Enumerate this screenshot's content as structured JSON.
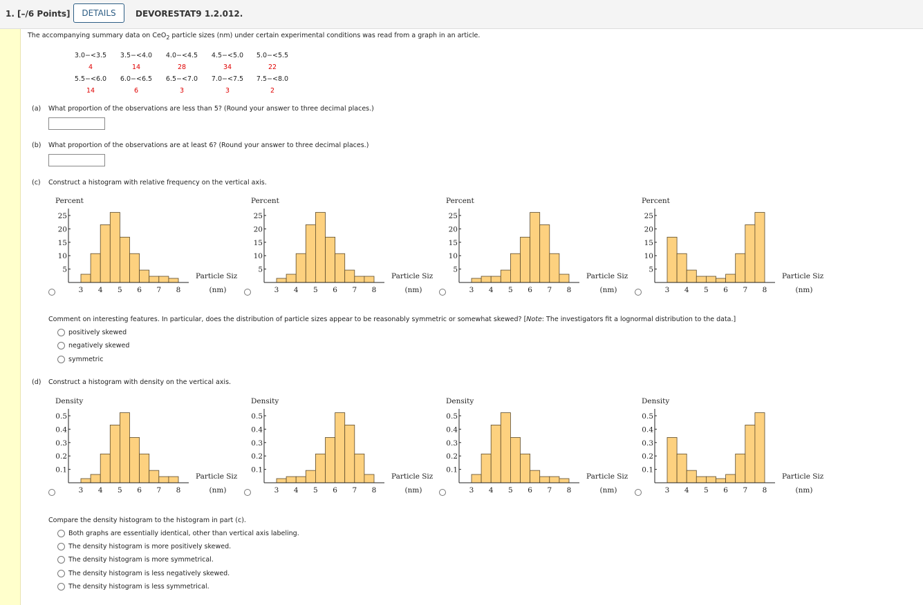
{
  "header": {
    "question_number": "1.",
    "points": "[–/6 Points]",
    "details_label": "DETAILS",
    "problem_id": "DEVORESTAT9 1.2.012."
  },
  "intro": {
    "before": "The accompanying summary data on CeO",
    "subscript": "2",
    "after": " particle sizes (nm) under certain experimental conditions was read from a graph in an article."
  },
  "table": {
    "rows": [
      {
        "intervals": [
          "3.0−<3.5",
          "3.5−<4.0",
          "4.0−<4.5",
          "4.5−<5.0",
          "5.0−<5.5"
        ],
        "counts": [
          "4",
          "14",
          "28",
          "34",
          "22"
        ]
      },
      {
        "intervals": [
          "5.5−<6.0",
          "6.0−<6.5",
          "6.5−<7.0",
          "7.0−<7.5",
          "7.5−<8.0"
        ],
        "counts": [
          "14",
          "6",
          "3",
          "3",
          "2"
        ]
      }
    ]
  },
  "part_a": {
    "label": "(a)",
    "question": "What proportion of the observations are less than 5? (Round your answer to three decimal places.)",
    "value": ""
  },
  "part_b": {
    "label": "(b)",
    "question": "What proportion of the observations are at least 6? (Round your answer to three decimal places.)",
    "value": ""
  },
  "part_c": {
    "label": "(c)",
    "question": "Construct a histogram with relative frequency on the vertical axis."
  },
  "comment": {
    "question_pre": "Comment on interesting features. In particular, does the distribution of particle sizes appear to be reasonably symmetric or somewhat skewed? [",
    "note_word": "Note",
    "question_post": ": The investigators fit a lognormal distribution to the data.]",
    "options": [
      "positively skewed",
      "negatively skewed",
      "symmetric"
    ]
  },
  "part_d": {
    "label": "(d)",
    "question": "Construct a histogram with density on the vertical axis."
  },
  "compare": {
    "question": "Compare the density histogram to the histogram in part (c).",
    "options": [
      "Both graphs are essentially identical, other than vertical axis labeling.",
      "The density histogram is more positively skewed.",
      "The density histogram is more symmetrical.",
      "The density histogram is less negatively skewed.",
      "The density histogram is less symmetrical."
    ]
  },
  "colors": {
    "bar_fill": "#fdd17f",
    "bar_stroke": "#5b4a2c",
    "count_text": "#e00000",
    "strip": "#ffffcc",
    "details": "#2c5d84"
  },
  "chart_data": [
    {
      "type": "bar",
      "group": "percent",
      "ylabel": "Percent",
      "xlabel": "Particle Size",
      "xunit": "(nm)",
      "bin_edges": [
        3,
        3.5,
        4,
        4.5,
        5,
        5.5,
        6,
        6.5,
        7,
        7.5,
        8
      ],
      "xticks": [
        "3",
        "4",
        "5",
        "6",
        "7",
        "8"
      ],
      "yticks": [
        "5",
        "10",
        "15",
        "20",
        "25"
      ],
      "ylim": [
        0,
        27
      ],
      "values": [
        3.08,
        10.77,
        21.54,
        26.15,
        16.92,
        10.77,
        4.62,
        2.31,
        2.31,
        1.54
      ]
    },
    {
      "type": "bar",
      "group": "percent",
      "ylabel": "Percent",
      "xlabel": "Particle Size",
      "xunit": "(nm)",
      "bin_edges": [
        3,
        3.5,
        4,
        4.5,
        5,
        5.5,
        6,
        6.5,
        7,
        7.5,
        8
      ],
      "xticks": [
        "3",
        "4",
        "5",
        "6",
        "7",
        "8"
      ],
      "yticks": [
        "5",
        "10",
        "15",
        "20",
        "25"
      ],
      "ylim": [
        0,
        27
      ],
      "values": [
        1.54,
        3.08,
        10.77,
        21.54,
        26.15,
        16.92,
        10.77,
        4.62,
        2.31,
        2.31
      ]
    },
    {
      "type": "bar",
      "group": "percent",
      "ylabel": "Percent",
      "xlabel": "Particle Size",
      "xunit": "(nm)",
      "bin_edges": [
        3,
        3.5,
        4,
        4.5,
        5,
        5.5,
        6,
        6.5,
        7,
        7.5,
        8
      ],
      "xticks": [
        "3",
        "4",
        "5",
        "6",
        "7",
        "8"
      ],
      "yticks": [
        "5",
        "10",
        "15",
        "20",
        "25"
      ],
      "ylim": [
        0,
        27
      ],
      "values": [
        1.54,
        2.31,
        2.31,
        4.62,
        10.77,
        16.92,
        26.15,
        21.54,
        10.77,
        3.08
      ]
    },
    {
      "type": "bar",
      "group": "percent",
      "ylabel": "Percent",
      "xlabel": "Particle Size",
      "xunit": "(nm)",
      "bin_edges": [
        3,
        3.5,
        4,
        4.5,
        5,
        5.5,
        6,
        6.5,
        7,
        7.5,
        8
      ],
      "xticks": [
        "3",
        "4",
        "5",
        "6",
        "7",
        "8"
      ],
      "yticks": [
        "5",
        "10",
        "15",
        "20",
        "25"
      ],
      "ylim": [
        0,
        27
      ],
      "values": [
        16.92,
        10.77,
        4.62,
        2.31,
        2.31,
        1.54,
        3.08,
        10.77,
        21.54,
        26.15
      ]
    },
    {
      "type": "bar",
      "group": "density",
      "ylabel": "Density",
      "xlabel": "Particle Size",
      "xunit": "(nm)",
      "bin_edges": [
        3,
        3.5,
        4,
        4.5,
        5,
        5.5,
        6,
        6.5,
        7,
        7.5,
        8
      ],
      "xticks": [
        "3",
        "4",
        "5",
        "6",
        "7",
        "8"
      ],
      "yticks": [
        "0.1",
        "0.2",
        "0.3",
        "0.4",
        "0.5"
      ],
      "ylim": [
        0,
        0.54
      ],
      "values": [
        0.031,
        0.062,
        0.215,
        0.431,
        0.523,
        0.338,
        0.215,
        0.092,
        0.046,
        0.046
      ]
    },
    {
      "type": "bar",
      "group": "density",
      "ylabel": "Density",
      "xlabel": "Particle Size",
      "xunit": "(nm)",
      "bin_edges": [
        3,
        3.5,
        4,
        4.5,
        5,
        5.5,
        6,
        6.5,
        7,
        7.5,
        8
      ],
      "xticks": [
        "3",
        "4",
        "5",
        "6",
        "7",
        "8"
      ],
      "yticks": [
        "0.1",
        "0.2",
        "0.3",
        "0.4",
        "0.5"
      ],
      "ylim": [
        0,
        0.54
      ],
      "values": [
        0.031,
        0.046,
        0.046,
        0.092,
        0.215,
        0.338,
        0.523,
        0.431,
        0.215,
        0.062
      ]
    },
    {
      "type": "bar",
      "group": "density",
      "ylabel": "Density",
      "xlabel": "Particle Size",
      "xunit": "(nm)",
      "bin_edges": [
        3,
        3.5,
        4,
        4.5,
        5,
        5.5,
        6,
        6.5,
        7,
        7.5,
        8
      ],
      "xticks": [
        "3",
        "4",
        "5",
        "6",
        "7",
        "8"
      ],
      "yticks": [
        "0.1",
        "0.2",
        "0.3",
        "0.4",
        "0.5"
      ],
      "ylim": [
        0,
        0.54
      ],
      "values": [
        0.062,
        0.215,
        0.431,
        0.523,
        0.338,
        0.215,
        0.092,
        0.046,
        0.046,
        0.031
      ]
    },
    {
      "type": "bar",
      "group": "density",
      "ylabel": "Density",
      "xlabel": "Particle Size",
      "xunit": "(nm)",
      "bin_edges": [
        3,
        3.5,
        4,
        4.5,
        5,
        5.5,
        6,
        6.5,
        7,
        7.5,
        8
      ],
      "xticks": [
        "3",
        "4",
        "5",
        "6",
        "7",
        "8"
      ],
      "yticks": [
        "0.1",
        "0.2",
        "0.3",
        "0.4",
        "0.5"
      ],
      "ylim": [
        0,
        0.54
      ],
      "values": [
        0.338,
        0.215,
        0.092,
        0.046,
        0.046,
        0.031,
        0.062,
        0.215,
        0.431,
        0.523
      ]
    }
  ]
}
